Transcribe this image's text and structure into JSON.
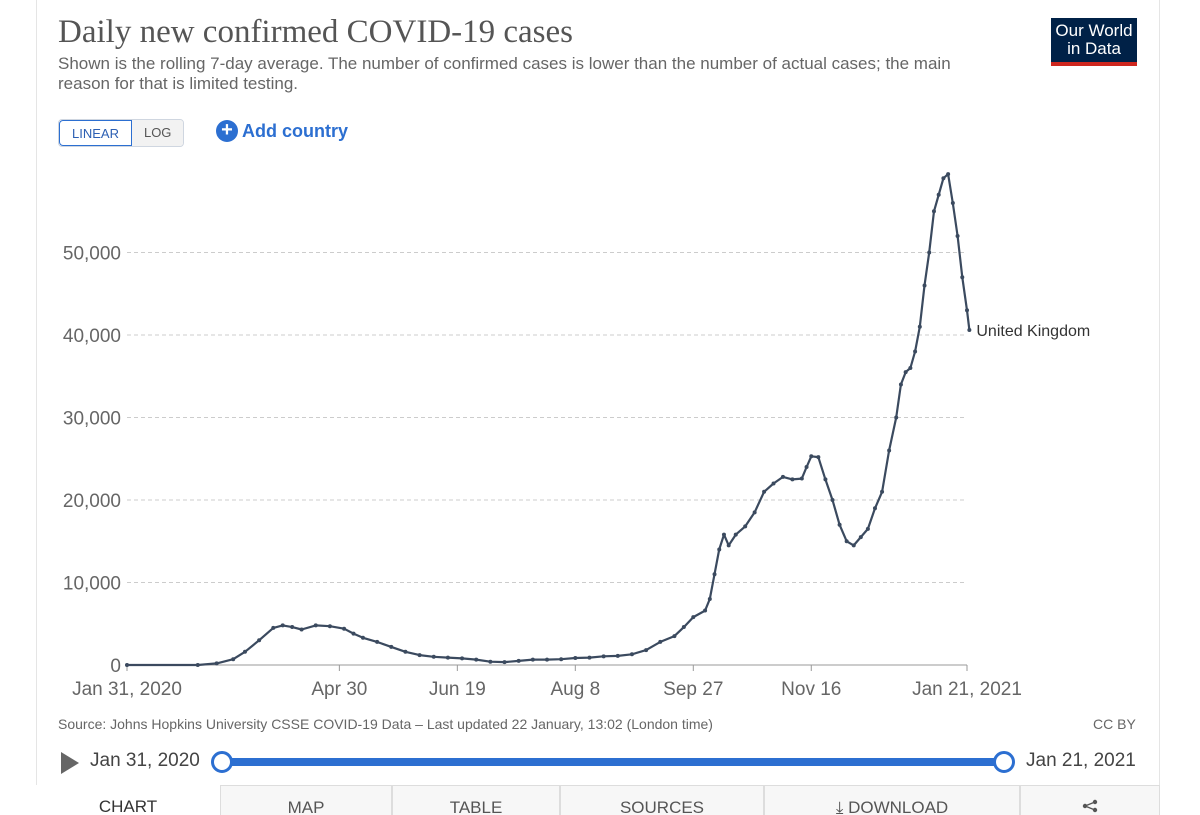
{
  "header": {
    "title": "Daily new confirmed COVID-19 cases",
    "subtitle": "Shown is the rolling 7-day average. The number of confirmed cases is lower than the number of actual cases; the main reason for that is limited testing.",
    "logo_line1": "Our World",
    "logo_line2": "in Data"
  },
  "controls": {
    "linear_label": "LINEAR",
    "log_label": "LOG",
    "add_country_label": "Add country",
    "active_scale": "linear"
  },
  "colors": {
    "series": "#3b4a5f",
    "accent": "#2c6fd1",
    "grid": "#cccccc",
    "logo_bg": "#002147",
    "logo_bar": "#ce261e"
  },
  "chart_data": {
    "type": "line",
    "title": "Daily new confirmed COVID-19 cases",
    "xlabel": "",
    "ylabel": "",
    "ylim": [
      0,
      60000
    ],
    "x_range_days": [
      0,
      356
    ],
    "y_ticks": [
      {
        "value": 0,
        "label": "0"
      },
      {
        "value": 10000,
        "label": "10,000"
      },
      {
        "value": 20000,
        "label": "20,000"
      },
      {
        "value": 30000,
        "label": "30,000"
      },
      {
        "value": 40000,
        "label": "40,000"
      },
      {
        "value": 50000,
        "label": "50,000"
      }
    ],
    "x_ticks": [
      {
        "day": 0,
        "label": "Jan 31, 2020"
      },
      {
        "day": 90,
        "label": "Apr 30"
      },
      {
        "day": 140,
        "label": "Jun 19"
      },
      {
        "day": 190,
        "label": "Aug 8"
      },
      {
        "day": 240,
        "label": "Sep 27"
      },
      {
        "day": 290,
        "label": "Nov 16"
      },
      {
        "day": 356,
        "label": "Jan 21, 2021"
      }
    ],
    "series": [
      {
        "name": "United Kingdom",
        "end_label": "United Kingdom",
        "points": [
          [
            0,
            0
          ],
          [
            30,
            0
          ],
          [
            38,
            200
          ],
          [
            45,
            700
          ],
          [
            50,
            1600
          ],
          [
            56,
            3000
          ],
          [
            62,
            4500
          ],
          [
            66,
            4800
          ],
          [
            70,
            4600
          ],
          [
            74,
            4300
          ],
          [
            80,
            4800
          ],
          [
            86,
            4700
          ],
          [
            92,
            4400
          ],
          [
            96,
            3800
          ],
          [
            100,
            3300
          ],
          [
            106,
            2800
          ],
          [
            112,
            2200
          ],
          [
            118,
            1600
          ],
          [
            124,
            1200
          ],
          [
            130,
            1000
          ],
          [
            136,
            900
          ],
          [
            142,
            800
          ],
          [
            148,
            650
          ],
          [
            154,
            400
          ],
          [
            160,
            350
          ],
          [
            166,
            500
          ],
          [
            172,
            650
          ],
          [
            178,
            650
          ],
          [
            184,
            700
          ],
          [
            190,
            850
          ],
          [
            196,
            900
          ],
          [
            202,
            1050
          ],
          [
            208,
            1100
          ],
          [
            214,
            1300
          ],
          [
            220,
            1800
          ],
          [
            226,
            2800
          ],
          [
            232,
            3500
          ],
          [
            236,
            4600
          ],
          [
            240,
            5800
          ],
          [
            245,
            6600
          ],
          [
            247,
            8000
          ],
          [
            249,
            11000
          ],
          [
            251,
            14000
          ],
          [
            253,
            15800
          ],
          [
            255,
            14500
          ],
          [
            258,
            15800
          ],
          [
            262,
            16800
          ],
          [
            266,
            18500
          ],
          [
            270,
            21000
          ],
          [
            274,
            22000
          ],
          [
            278,
            22800
          ],
          [
            282,
            22500
          ],
          [
            286,
            22600
          ],
          [
            288,
            24000
          ],
          [
            290,
            25300
          ],
          [
            293,
            25200
          ],
          [
            296,
            22500
          ],
          [
            299,
            20000
          ],
          [
            302,
            17000
          ],
          [
            305,
            15000
          ],
          [
            308,
            14500
          ],
          [
            311,
            15500
          ],
          [
            314,
            16500
          ],
          [
            317,
            19000
          ],
          [
            320,
            21000
          ],
          [
            323,
            26000
          ],
          [
            326,
            30000
          ],
          [
            328,
            34000
          ],
          [
            330,
            35500
          ],
          [
            332,
            36000
          ],
          [
            334,
            38000
          ],
          [
            336,
            41000
          ],
          [
            338,
            46000
          ],
          [
            340,
            50000
          ],
          [
            342,
            55000
          ],
          [
            344,
            57000
          ],
          [
            346,
            59000
          ],
          [
            348,
            59500
          ],
          [
            350,
            56000
          ],
          [
            352,
            52000
          ],
          [
            354,
            47000
          ],
          [
            356,
            43000
          ],
          [
            357,
            40600
          ]
        ]
      }
    ]
  },
  "footer": {
    "source": "Source: Johns Hopkins University CSSE COVID-19 Data – Last updated 22 January, 13:02 (London time)",
    "license": "CC BY"
  },
  "timeline": {
    "start": "Jan 31, 2020",
    "end": "Jan 21, 2021"
  },
  "tabs": [
    {
      "label": "CHART",
      "active": true
    },
    {
      "label": "MAP",
      "active": false
    },
    {
      "label": "TABLE",
      "active": false
    },
    {
      "label": "SOURCES",
      "active": false
    },
    {
      "label": "DOWNLOAD",
      "active": false
    },
    {
      "label": "",
      "active": false
    }
  ]
}
